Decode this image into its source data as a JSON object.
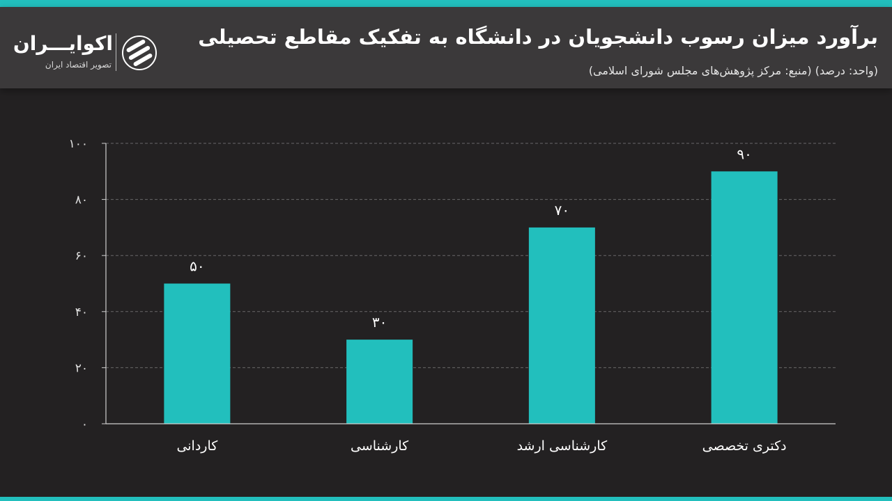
{
  "header": {
    "title": "برآورد میزان رسوب دانشجویان در دانشگاه به تفکیک مقاطع تحصیلی",
    "subtitle": "(واحد: درصد) (منبع: مرکز پژوهش‌های مجلس شورای اسلامی)"
  },
  "logo": {
    "name": "اکوایـــران",
    "tagline": "تصویر اقتصاد ایران"
  },
  "colors": {
    "accent": "#22bfbd",
    "background": "#232122",
    "header": "#3b393a"
  },
  "chart_data": {
    "type": "bar",
    "categories": [
      "کاردانی",
      "کارشناسی",
      "کارشناسی ارشد",
      "دکتری تخصصی"
    ],
    "values": [
      50,
      30,
      70,
      90
    ],
    "value_labels": [
      "۵۰",
      "۳۰",
      "۷۰",
      "۹۰"
    ],
    "ylim": [
      0,
      100
    ],
    "yticks": [
      0,
      20,
      40,
      60,
      80,
      100
    ],
    "ytick_labels": [
      "۰",
      "۲۰",
      "۴۰",
      "۶۰",
      "۸۰",
      "۱۰۰"
    ],
    "grid": true,
    "bar_color": "#22bfbd"
  }
}
